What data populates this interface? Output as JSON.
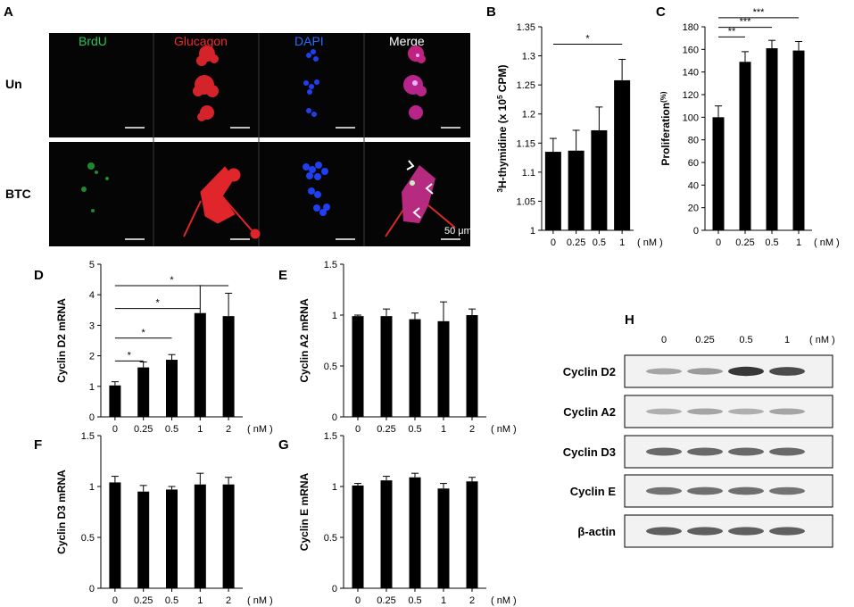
{
  "panels": {
    "A": "A",
    "B": "B",
    "C": "C",
    "D": "D",
    "E": "E",
    "F": "F",
    "G": "G",
    "H": "H"
  },
  "micrograph": {
    "channels": [
      {
        "label": "BrdU",
        "color": "#22c55e"
      },
      {
        "label": "Glucagon",
        "color": "#ef2b2b"
      },
      {
        "label": "DAPI",
        "color": "#2a6bff"
      },
      {
        "label": "Merge",
        "color": "#ffffff"
      }
    ],
    "rows": [
      "Un",
      "BTC"
    ],
    "scalebar_label": "50 μm"
  },
  "unit_label": "( nM )",
  "chart_data": [
    {
      "panel": "B",
      "type": "bar",
      "categories": [
        "0",
        "0.25",
        "0.5",
        "1"
      ],
      "values": [
        1.135,
        1.137,
        1.172,
        1.258
      ],
      "errors": [
        0.023,
        0.035,
        0.04,
        0.036
      ],
      "ylabel_pre": "3",
      "ylabel": "H-thymidine (x 10",
      "ylabel_sup": "5",
      "ylabel_post": " CPM)",
      "ylim": [
        1,
        1.35
      ],
      "yticks": [
        "1",
        "1.05",
        "1.1",
        "1.15",
        "1.2",
        "1.25",
        "1.3",
        "1.35"
      ],
      "significance": [
        {
          "from": 0,
          "to": 3,
          "label": "*"
        }
      ]
    },
    {
      "panel": "C",
      "type": "bar",
      "categories": [
        "0",
        "0.25",
        "0.5",
        "1"
      ],
      "values": [
        100,
        149,
        161,
        159
      ],
      "errors": [
        10,
        9,
        7,
        8
      ],
      "ylabel": "Proliferation",
      "ylabel_unit": "(%)",
      "ylim": [
        0,
        180
      ],
      "yticks": [
        "0",
        "20",
        "40",
        "60",
        "80",
        "100",
        "120",
        "140",
        "160",
        "180"
      ],
      "significance": [
        {
          "from": 0,
          "to": 1,
          "label": "**"
        },
        {
          "from": 0,
          "to": 2,
          "label": "***"
        },
        {
          "from": 0,
          "to": 3,
          "label": "***"
        }
      ]
    },
    {
      "panel": "D",
      "type": "bar",
      "categories": [
        "0",
        "0.25",
        "0.5",
        "1",
        "2"
      ],
      "values": [
        1.03,
        1.62,
        1.87,
        3.4,
        3.3
      ],
      "errors": [
        0.12,
        0.18,
        0.17,
        0.9,
        0.75
      ],
      "ylabel": "Cyclin D2 mRNA",
      "ylim": [
        0,
        5
      ],
      "yticks": [
        "0",
        "1",
        "2",
        "3",
        "4",
        "5"
      ],
      "significance": [
        {
          "from": 0,
          "to": 1,
          "label": "*"
        },
        {
          "from": 0,
          "to": 2,
          "label": "*"
        },
        {
          "from": 0,
          "to": 3,
          "label": "*"
        },
        {
          "from": 0,
          "to": 4,
          "label": "*"
        }
      ]
    },
    {
      "panel": "E",
      "type": "bar",
      "categories": [
        "0",
        "0.25",
        "0.5",
        "1",
        "2"
      ],
      "values": [
        0.99,
        0.99,
        0.96,
        0.94,
        1.0
      ],
      "errors": [
        0.01,
        0.07,
        0.06,
        0.19,
        0.06
      ],
      "ylabel": "Cyclin A2 mRNA",
      "ylim": [
        0,
        1.5
      ],
      "yticks": [
        "0",
        "0.5",
        "1",
        "1.5"
      ],
      "significance": []
    },
    {
      "panel": "F",
      "type": "bar",
      "categories": [
        "0",
        "0.25",
        "0.5",
        "1",
        "2"
      ],
      "values": [
        1.04,
        0.95,
        0.97,
        1.02,
        1.02
      ],
      "errors": [
        0.06,
        0.06,
        0.03,
        0.11,
        0.07
      ],
      "ylabel": "Cyclin D3 mRNA",
      "ylim": [
        0,
        1.5
      ],
      "yticks": [
        "0",
        "0.5",
        "1",
        "1.5"
      ],
      "significance": []
    },
    {
      "panel": "G",
      "type": "bar",
      "categories": [
        "0",
        "0.25",
        "0.5",
        "1",
        "2"
      ],
      "values": [
        1.01,
        1.06,
        1.09,
        0.98,
        1.05
      ],
      "errors": [
        0.02,
        0.04,
        0.04,
        0.05,
        0.04
      ],
      "ylabel": "Cyclin E mRNA",
      "ylim": [
        0,
        1.5
      ],
      "yticks": [
        "0",
        "0.5",
        "1",
        "1.5"
      ],
      "significance": []
    }
  ],
  "western_blot": {
    "lanes": [
      "0",
      "0.25",
      "0.5",
      "1"
    ],
    "unit": "( nM )",
    "rows": [
      {
        "label": "Cyclin D2",
        "intensity": [
          0.35,
          0.4,
          0.9,
          0.8
        ]
      },
      {
        "label": "Cyclin A2",
        "intensity": [
          0.3,
          0.35,
          0.3,
          0.35
        ]
      },
      {
        "label": "Cyclin D3",
        "intensity": [
          0.65,
          0.65,
          0.65,
          0.65
        ]
      },
      {
        "label": "Cyclin E",
        "intensity": [
          0.6,
          0.62,
          0.62,
          0.6
        ]
      },
      {
        "label": "β-actin",
        "intensity": [
          0.7,
          0.7,
          0.7,
          0.7
        ]
      }
    ]
  }
}
